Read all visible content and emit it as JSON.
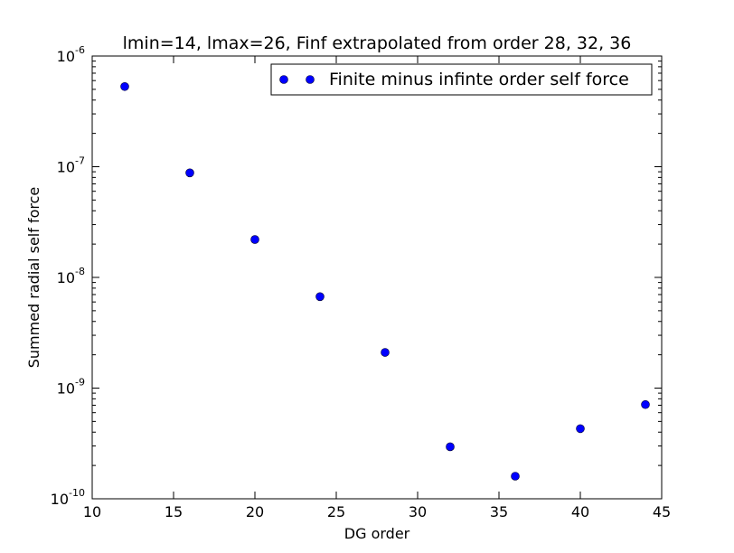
{
  "chart_data": {
    "type": "scatter",
    "title": "lmin=14, lmax=26, Finf extrapolated from order 28, 32, 36",
    "xlabel": "DG order",
    "ylabel": "Summed radial self force",
    "xlim": [
      10,
      45
    ],
    "ylim": [
      1e-10,
      1e-06
    ],
    "yscale": "log",
    "x_ticks": [
      10,
      15,
      20,
      25,
      30,
      35,
      40,
      45
    ],
    "y_ticks": [
      {
        "value": 1e-10,
        "base": "10",
        "exp": "-10"
      },
      {
        "value": 1e-09,
        "base": "10",
        "exp": "-9"
      },
      {
        "value": 1e-08,
        "base": "10",
        "exp": "-8"
      },
      {
        "value": 1e-07,
        "base": "10",
        "exp": "-7"
      },
      {
        "value": 1e-06,
        "base": "10",
        "exp": "-6"
      }
    ],
    "grid": false,
    "legend_position": "top-right",
    "series": [
      {
        "name": "Finite minus infinte order self force",
        "color": "#0000ff",
        "marker": "circle",
        "x": [
          12,
          16,
          20,
          24,
          28,
          32,
          36,
          40,
          44
        ],
        "y": [
          5.3e-07,
          8.8e-08,
          2.2e-08,
          6.7e-09,
          2.1e-09,
          2.95e-10,
          1.6e-10,
          4.3e-10,
          7.1e-10
        ]
      }
    ]
  }
}
